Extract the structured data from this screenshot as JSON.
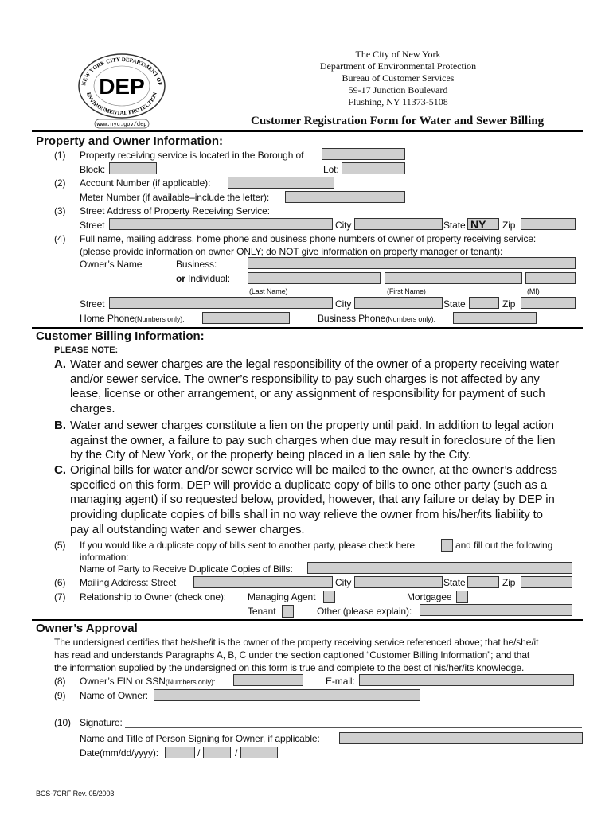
{
  "header": {
    "lines": [
      "The City of New York",
      "Department of Environmental Protection",
      "Bureau of Customer Services",
      "59-17 Junction Boulevard",
      "Flushing, NY 11373-5108"
    ],
    "title": "Customer Registration Form for Water and Sewer Billing",
    "logo": {
      "text": "DEP",
      "ring_top": "NEW YORK CITY DEPARTMENT OF",
      "ring_bottom": "ENVIRONMENTAL PROTECTION",
      "url": "www.nyc.gov/dep"
    }
  },
  "property": {
    "heading": "Property and Owner Information:",
    "n1": "(1)",
    "borough": "Property receiving service is located in the Borough of",
    "block": "Block:",
    "lot": "Lot:",
    "n2": "(2)",
    "account": "Account Number (if applicable):",
    "meter": "Meter Number (if available–include the letter):",
    "n3": "(3)",
    "address": "Street Address of Property Receiving Service:",
    "street": "Street",
    "city": "City",
    "state": "State",
    "state_value": "NY",
    "zip": "Zip",
    "n4": "(4)",
    "full_name": "Full name, mailing address, home phone and business phone numbers of owner of property receiving service:",
    "note": "(please provide information on owner ONLY; do NOT give information on property manager or tenant):",
    "owners_name": "Owner’s Name",
    "business": "Business:",
    "or": "or",
    "individual": " Individual:",
    "last": "(Last Name)",
    "first": "(First Name)",
    "mi": "(MI)",
    "home_phone": "Home Phone",
    "business_phone": "Business Phone",
    "numbers_only": "(Numbers only):"
  },
  "billing": {
    "heading": "Customer Billing Information:",
    "please_note": "PLEASE NOTE:",
    "A": {
      "label": "A.",
      "lines": [
        "Water and sewer charges are the legal responsibility of the owner of a property receiving water",
        "and/or sewer service. The owner’s responsibility to pay such charges is not affected by any",
        "lease, license or other arrangement, or any assignment of responsibility for payment of such",
        "charges."
      ]
    },
    "B": {
      "label": "B.",
      "lines": [
        "Water and sewer charges constitute a lien on the property until paid. In addition to legal action",
        "against the owner, a failure to pay such charges when due may result in foreclosure of the lien",
        "by the City of New York, or the property being placed in a lien sale by the City."
      ]
    },
    "C": {
      "label": "C.",
      "lines": [
        "Original bills for water and/or sewer service will be mailed to the owner, at the owner’s address",
        "specified on this form. DEP will provide a duplicate copy of bills to one other party (such as a",
        "managing agent) if so requested below, provided, however, that any failure or delay by DEP in",
        "providing duplicate copies of bills shall in no way relieve the owner from his/her/its liability to",
        "pay all outstanding water and sewer charges."
      ]
    },
    "n5": "(5)",
    "dup": "If you would like a duplicate copy of bills sent to another party, please check here",
    "dup2": "and fill out the following",
    "info": "information:",
    "party": "Name of Party to Receive Duplicate Copies of Bills:",
    "n6": "(6)",
    "mailing": "Mailing Address:  Street",
    "n7": "(7)",
    "relationship": "Relationship to Owner (check one):",
    "managing_agent": "Managing Agent",
    "mortgagee": "Mortgagee",
    "tenant": "Tenant",
    "other": "Other (please explain):"
  },
  "approval": {
    "heading": "Owner’s Approval",
    "lines": [
      "The undersigned certifies that he/she/it is the owner of the property receiving service referenced above; that he/she/it",
      "has read and understands Paragraphs A, B, C under the section captioned “Customer Billing Information”; and that",
      "the information supplied by the undersigned on this form is true and complete to the best of his/her/its knowledge."
    ],
    "n8": "(8)",
    "ein": "Owner’s EIN or SSN",
    "email": "E-mail:",
    "n9": "(9)",
    "name_owner": "Name of Owner:",
    "n10": "(10)",
    "signature": "Signature:",
    "name_title": "Name and Title of Person Signing for Owner, if applicable:",
    "date": "Date(mm/dd/yyyy):",
    "slash": "/"
  },
  "footer": "BCS-7CRF Rev. 05/2003"
}
